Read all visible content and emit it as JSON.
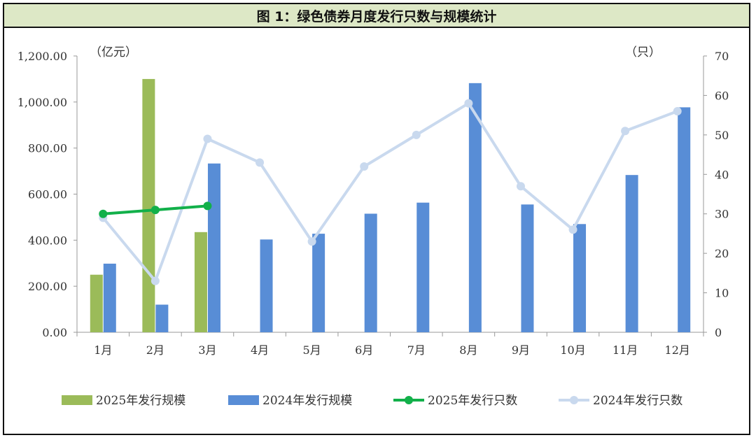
{
  "chart_data": {
    "type": "bar",
    "title": "图 1：绿色债券月度发行只数与规模统计",
    "categories": [
      "1月",
      "2月",
      "3月",
      "4月",
      "5月",
      "6月",
      "7月",
      "8月",
      "9月",
      "10月",
      "11月",
      "12月"
    ],
    "y_left_unit": "（亿元）",
    "y_right_unit": "（只）",
    "y_left_ticks": [
      "0.00",
      "200.00",
      "400.00",
      "600.00",
      "800.00",
      "1,000.00",
      "1,200.00"
    ],
    "y_right_ticks": [
      "0",
      "10",
      "20",
      "30",
      "40",
      "50",
      "60",
      "70"
    ],
    "y_left_range": [
      0,
      1200
    ],
    "y_right_range": [
      0,
      70
    ],
    "series": [
      {
        "name": "2025年发行规模",
        "kind": "bar",
        "axis": "left",
        "color": "#9bbb59",
        "values": [
          250,
          1100,
          435,
          null,
          null,
          null,
          null,
          null,
          null,
          null,
          null,
          null
        ]
      },
      {
        "name": "2024年发行规模",
        "kind": "bar",
        "axis": "left",
        "color": "#588dd6",
        "values": [
          298,
          120,
          733,
          403,
          428,
          515,
          563,
          1082,
          555,
          470,
          683,
          977
        ]
      },
      {
        "name": "2025年发行只数",
        "kind": "line",
        "axis": "right",
        "color": "#12b04a",
        "values": [
          30,
          31,
          32,
          null,
          null,
          null,
          null,
          null,
          null,
          null,
          null,
          null
        ]
      },
      {
        "name": "2024年发行只数",
        "kind": "line",
        "axis": "right",
        "color": "#c9d9ee",
        "values": [
          29,
          13,
          49,
          43,
          23,
          42,
          50,
          58,
          37,
          26,
          51,
          56
        ]
      }
    ],
    "legend_position": "bottom",
    "grid": false
  }
}
